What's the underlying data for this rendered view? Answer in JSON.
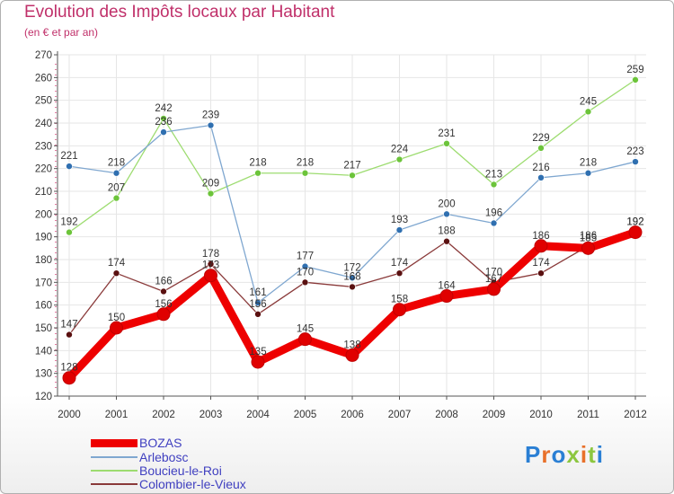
{
  "title": "Evolution des Impôts locaux par Habitant",
  "subtitle": "(en € et par an)",
  "logo": {
    "letters": [
      "P",
      "r",
      "o",
      "x",
      "i",
      "t",
      "i"
    ],
    "colors": [
      "#2a7fd4",
      "#e8702a",
      "#2a7fd4",
      "#8cc63f",
      "#e8702a",
      "#8cc63f",
      "#2a7fd4"
    ]
  },
  "chart_data": {
    "type": "line",
    "x": [
      "2000",
      "2001",
      "2002",
      "2003",
      "2004",
      "2005",
      "2006",
      "2007",
      "2008",
      "2009",
      "2010",
      "2011",
      "2012"
    ],
    "ylim": [
      120,
      270
    ],
    "yticks": [
      120,
      130,
      140,
      150,
      160,
      170,
      180,
      190,
      200,
      210,
      220,
      230,
      240,
      250,
      260,
      270
    ],
    "grid": true,
    "series": [
      {
        "name": "BOZAS",
        "color": "#ee0000",
        "marker": "#e00000",
        "width": 9,
        "markerRadius": 7,
        "values": [
          128,
          150,
          156,
          173,
          135,
          145,
          138,
          158,
          164,
          167,
          186,
          185,
          192
        ],
        "labels": [
          "128",
          "150",
          "156",
          "173",
          "135",
          "145",
          "138",
          "158",
          "164",
          "167",
          "186",
          "185",
          "192"
        ]
      },
      {
        "name": "Arlebosc",
        "color": "#7fa7d0",
        "marker": "#2f6fb0",
        "width": 1.3,
        "markerRadius": 3.5,
        "values": [
          221,
          218,
          236,
          239,
          161,
          177,
          172,
          193,
          200,
          196,
          216,
          218,
          223
        ],
        "labels": [
          "221",
          "218",
          "236",
          "239",
          "161",
          "177",
          "172",
          "193",
          "200",
          "196",
          "216",
          "218",
          "223"
        ]
      },
      {
        "name": "Boucieu-le-Roi",
        "color": "#9ddc70",
        "marker": "#6cc43a",
        "width": 1.3,
        "markerRadius": 3.5,
        "values": [
          192,
          207,
          242,
          209,
          218,
          218,
          217,
          224,
          231,
          213,
          229,
          245,
          259
        ],
        "labels": [
          "192",
          "207",
          "242",
          "209",
          "218",
          "218",
          "217",
          "224",
          "231",
          "213",
          "229",
          "245",
          "259"
        ]
      },
      {
        "name": "Colombier-le-Vieux",
        "color": "#8a3a3a",
        "marker": "#5a1010",
        "width": 1.3,
        "markerRadius": 3.5,
        "values": [
          147,
          174,
          166,
          178,
          156,
          170,
          168,
          174,
          188,
          170,
          174,
          186,
          192
        ],
        "labels": [
          "147",
          "174",
          "166",
          "178",
          "156",
          "170",
          "168",
          "174",
          "188",
          "170",
          "174",
          "186",
          "192"
        ]
      }
    ],
    "legend": "bottom-left"
  }
}
